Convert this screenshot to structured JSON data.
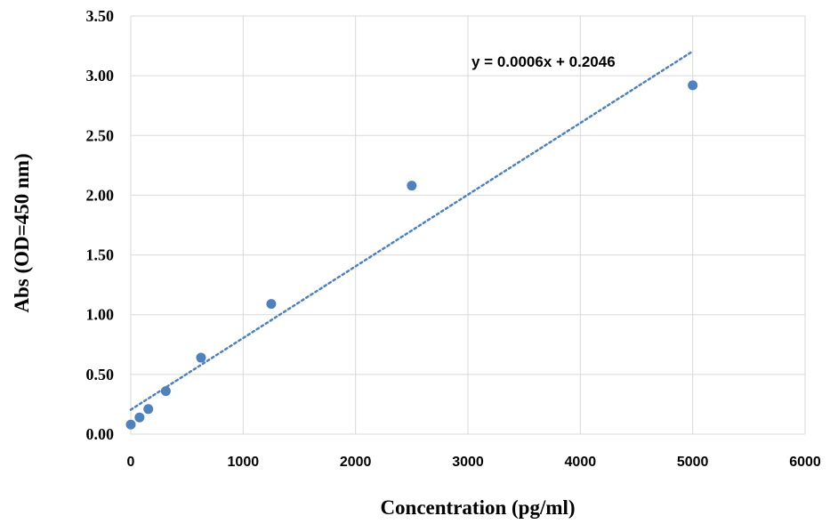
{
  "chart_data": {
    "type": "scatter",
    "title": "",
    "xlabel": "Concentration (pg/ml)",
    "ylabel": "Abs (OD=450 nm)",
    "xlim": [
      0,
      6000
    ],
    "ylim": [
      0,
      3.5
    ],
    "x_ticks": [
      "0",
      "1000",
      "2000",
      "3000",
      "4000",
      "5000",
      "6000"
    ],
    "y_ticks": [
      "0.00",
      "0.50",
      "1.00",
      "1.50",
      "2.00",
      "2.50",
      "3.00",
      "3.50"
    ],
    "grid": true,
    "series": [
      {
        "x": [
          0,
          78,
          156,
          312,
          625,
          1250,
          2500,
          5000
        ],
        "y": [
          0.08,
          0.14,
          0.21,
          0.36,
          0.64,
          1.09,
          2.08,
          2.92
        ],
        "color": "#4f81bd"
      }
    ],
    "trendline": {
      "type": "linear",
      "slope": 0.0006,
      "intercept": 0.2046,
      "x_range": [
        0,
        5000
      ],
      "color": "#4f81bd",
      "style": "dotted",
      "equation": "y = 0.0006x + 0.2046"
    }
  }
}
